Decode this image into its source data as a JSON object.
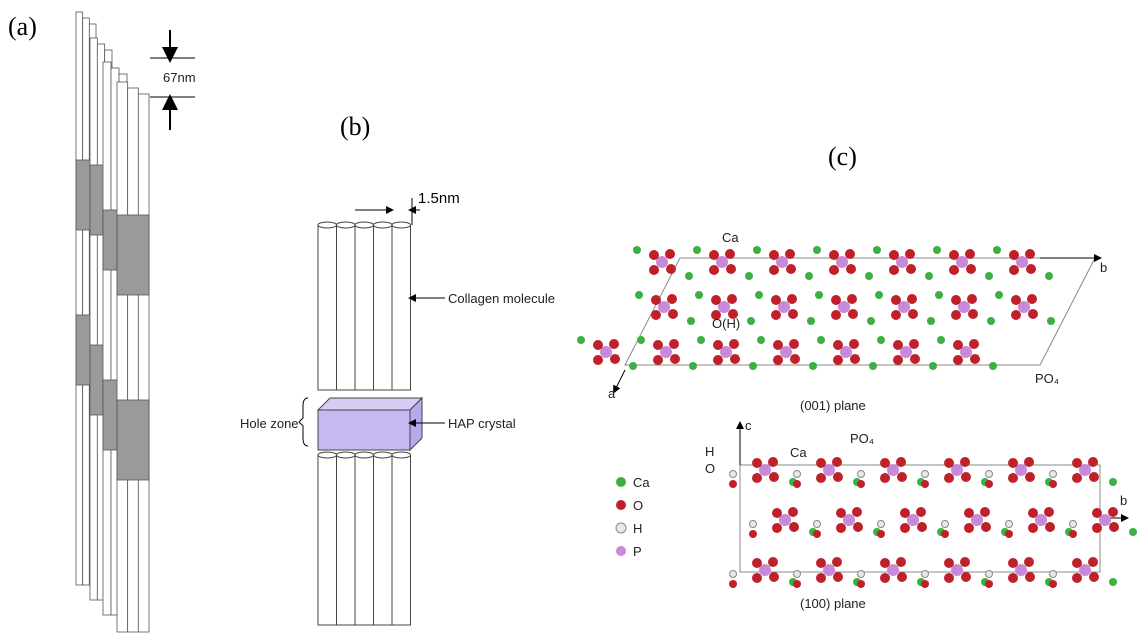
{
  "panels": {
    "a": {
      "label": "(a)",
      "spacing": "67nm"
    },
    "b": {
      "label": "(b)",
      "diameter": "1.5nm",
      "molecule": "Collagen molecule",
      "zone": "Hole zone",
      "crystal": "HAP crystal"
    },
    "c": {
      "label": "(c)",
      "top": {
        "ca": "Ca",
        "axis_b": "b",
        "oh": "O(H)",
        "po4": "PO₄",
        "axis_a": "a",
        "plane": "(001) plane"
      },
      "bottom": {
        "axis_c": "c",
        "h": "H",
        "o": "O",
        "ca": "Ca",
        "po4": "PO₄",
        "axis_b": "b",
        "plane": "(100) plane"
      },
      "legend": [
        "Ca",
        "O",
        "H",
        "P"
      ]
    }
  }
}
